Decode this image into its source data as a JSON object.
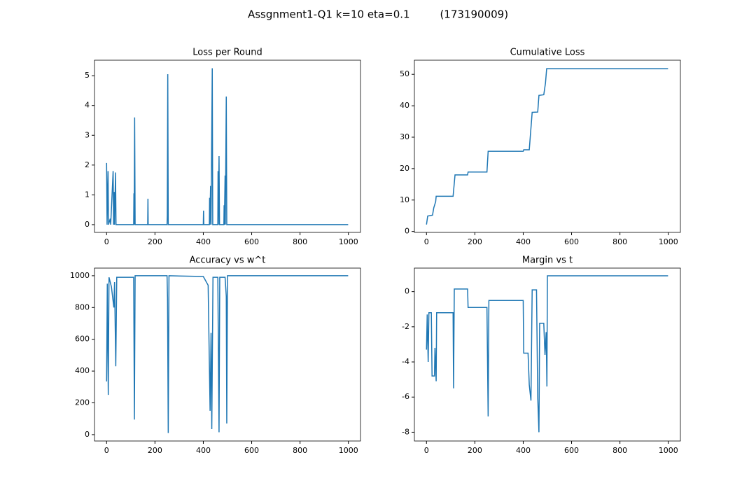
{
  "title": "Assgnment1-Q1 k=10 eta=0.1         (173190009)",
  "chart_data": [
    {
      "type": "line",
      "title": "Loss per Round",
      "color": "#1f77b4",
      "xlim": [
        -50,
        1050
      ],
      "xticks": [
        0,
        200,
        400,
        600,
        800,
        1000
      ],
      "ylim": [
        -0.26,
        5.52
      ],
      "yticks": [
        0,
        1,
        2,
        3,
        4,
        5
      ],
      "x": [
        0,
        2,
        6,
        8,
        15,
        17,
        27,
        29,
        31,
        33,
        37,
        39,
        112,
        113,
        114,
        116,
        118,
        170,
        171,
        172,
        250,
        251,
        253,
        255,
        400,
        401,
        402,
        425,
        426,
        427,
        430,
        432,
        437,
        439,
        460,
        461,
        462,
        465,
        467,
        485,
        486,
        487,
        490,
        491,
        495,
        497,
        999
      ],
      "values": [
        2.07,
        0,
        1.8,
        0,
        0.2,
        0,
        1.8,
        0,
        1.1,
        0,
        1.75,
        0,
        0,
        1.05,
        0,
        3.6,
        0,
        0,
        0.87,
        0,
        0,
        0.3,
        5.05,
        0,
        0,
        0.47,
        0,
        0,
        0.9,
        0,
        1.3,
        0,
        5.25,
        0,
        0,
        1.8,
        0,
        2.3,
        0,
        0,
        0.65,
        0,
        1.65,
        0,
        4.3,
        0,
        0
      ]
    },
    {
      "type": "line",
      "title": "Cumulative Loss",
      "color": "#1f77b4",
      "xlim": [
        -50,
        1050
      ],
      "xticks": [
        0,
        200,
        400,
        600,
        800,
        1000
      ],
      "ylim": [
        -0.3,
        54.5
      ],
      "yticks": [
        0,
        10,
        20,
        30,
        40,
        50
      ],
      "x": [
        0,
        5,
        25,
        30,
        38,
        40,
        110,
        118,
        170,
        172,
        250,
        255,
        400,
        402,
        425,
        437,
        460,
        465,
        485,
        492,
        497,
        999
      ],
      "values": [
        2.2,
        4.9,
        5.2,
        7.5,
        9.5,
        11.2,
        11.2,
        18,
        18,
        18.9,
        18.9,
        25.5,
        25.5,
        26,
        26,
        37.9,
        38,
        43.3,
        43.5,
        47.2,
        51.8,
        51.8
      ]
    },
    {
      "type": "line",
      "title": "Accuracy vs w^t",
      "color": "#1f77b4",
      "xlim": [
        -50,
        1050
      ],
      "xticks": [
        0,
        200,
        400,
        600,
        800,
        1000
      ],
      "ylim": [
        -40,
        1048
      ],
      "yticks": [
        0,
        200,
        400,
        600,
        800,
        1000
      ],
      "x": [
        0,
        3,
        7,
        10,
        20,
        30,
        33,
        38,
        42,
        112,
        115,
        118,
        250,
        252,
        255,
        258,
        400,
        420,
        428,
        432,
        435,
        440,
        460,
        465,
        468,
        490,
        495,
        497,
        500,
        999
      ],
      "values": [
        335,
        950,
        250,
        990,
        930,
        800,
        960,
        430,
        990,
        990,
        95,
        1000,
        1000,
        860,
        10,
        1000,
        995,
        940,
        150,
        640,
        35,
        990,
        990,
        15,
        990,
        990,
        870,
        70,
        1000,
        1000
      ]
    },
    {
      "type": "line",
      "title": "Margin vs t",
      "color": "#1f77b4",
      "xlim": [
        -50,
        1050
      ],
      "xticks": [
        0,
        200,
        400,
        600,
        800,
        1000
      ],
      "ylim": [
        -8.5,
        1.34
      ],
      "yticks": [
        -8,
        -6,
        -4,
        -2,
        0
      ],
      "x": [
        0,
        3,
        7,
        10,
        20,
        23,
        33,
        35,
        40,
        42,
        110,
        112,
        115,
        170,
        172,
        250,
        255,
        258,
        400,
        402,
        420,
        425,
        432,
        437,
        455,
        460,
        465,
        468,
        485,
        490,
        495,
        498,
        500,
        999
      ],
      "values": [
        -3.3,
        -1.3,
        -4,
        -1.2,
        -1.2,
        -4.8,
        -4.8,
        -3.2,
        -5.1,
        -1.2,
        -1.2,
        -5.5,
        0.15,
        0.15,
        -0.9,
        -0.9,
        -7.1,
        -0.5,
        -0.5,
        -3.5,
        -3.5,
        -5.3,
        -6.2,
        0.1,
        0.1,
        -6,
        -8,
        -1.8,
        -1.8,
        -3.6,
        -2.3,
        -5.4,
        0.9,
        0.9
      ]
    }
  ]
}
